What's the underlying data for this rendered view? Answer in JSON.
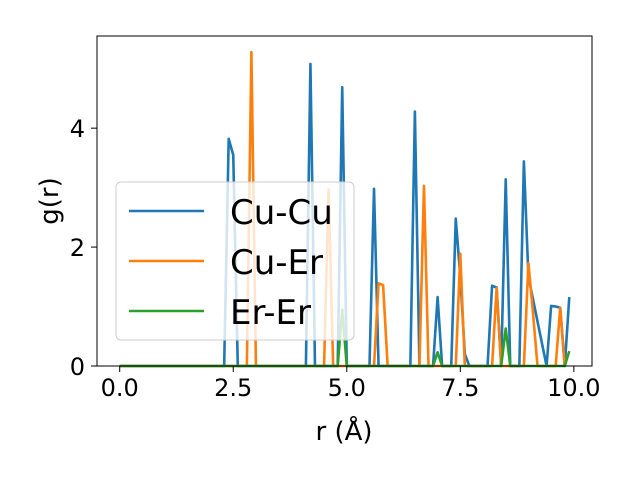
{
  "chart_data": {
    "type": "line",
    "xlabel": "r (Å)",
    "ylabel": "g(r)",
    "xlim": [
      -0.5,
      10.4
    ],
    "ylim": [
      0,
      5.55
    ],
    "xticks": [
      0.0,
      2.5,
      5.0,
      7.5,
      10.0
    ],
    "xtick_labels": [
      "0.0",
      "2.5",
      "5.0",
      "7.5",
      "10.0"
    ],
    "yticks": [
      0,
      2,
      4
    ],
    "ytick_labels": [
      "0",
      "2",
      "4"
    ],
    "grid": false,
    "legend_position": "center-left",
    "series": [
      {
        "name": "Cu-Cu",
        "color": "#1f77b4",
        "x": [
          0.0,
          2.3,
          2.4,
          2.5,
          2.6,
          4.1,
          4.2,
          4.3,
          4.8,
          4.9,
          5.0,
          5.5,
          5.6,
          5.7,
          6.4,
          6.5,
          6.6,
          6.9,
          7.0,
          7.1,
          7.3,
          7.4,
          7.5,
          7.6,
          7.7,
          8.1,
          8.2,
          8.3,
          8.4,
          8.5,
          8.6,
          8.8,
          8.9,
          9.0,
          9.4,
          9.5,
          9.6,
          9.7,
          9.8,
          9.9
        ],
        "y": [
          0.0,
          0.0,
          3.82,
          3.55,
          0.0,
          0.0,
          5.08,
          0.0,
          0.0,
          4.69,
          0.0,
          0.0,
          2.98,
          0.0,
          0.0,
          4.28,
          0.0,
          0.0,
          1.16,
          0.0,
          0.0,
          2.48,
          1.5,
          0.2,
          0.0,
          0.0,
          1.35,
          1.32,
          0.0,
          3.14,
          0.0,
          0.0,
          3.44,
          1.5,
          0.0,
          1.01,
          1.0,
          0.98,
          0.0,
          1.16
        ]
      },
      {
        "name": "Cu-Er",
        "color": "#ff7f0e",
        "x": [
          0.0,
          2.8,
          2.9,
          3.0,
          4.5,
          4.6,
          4.7,
          5.6,
          5.7,
          5.8,
          5.9,
          6.6,
          6.7,
          6.8,
          7.4,
          7.5,
          7.6,
          8.2,
          8.3,
          8.4,
          8.9,
          9.0,
          9.1,
          9.2,
          9.6,
          9.7,
          9.8
        ],
        "y": [
          0.0,
          0.0,
          5.28,
          0.0,
          0.0,
          2.97,
          0.0,
          0.0,
          1.39,
          1.36,
          0.0,
          0.0,
          3.03,
          0.0,
          0.0,
          1.89,
          0.0,
          0.0,
          1.31,
          0.0,
          0.0,
          1.73,
          0.9,
          0.0,
          0.0,
          0.98,
          0.0
        ]
      },
      {
        "name": "Er-Er",
        "color": "#2ca02c",
        "x": [
          0.0,
          4.8,
          4.9,
          5.0,
          6.9,
          7.0,
          7.1,
          8.4,
          8.5,
          8.6,
          9.8,
          9.9
        ],
        "y": [
          0.0,
          0.0,
          0.95,
          0.0,
          0.0,
          0.23,
          0.0,
          0.0,
          0.63,
          0.0,
          0.0,
          0.25
        ]
      }
    ]
  }
}
